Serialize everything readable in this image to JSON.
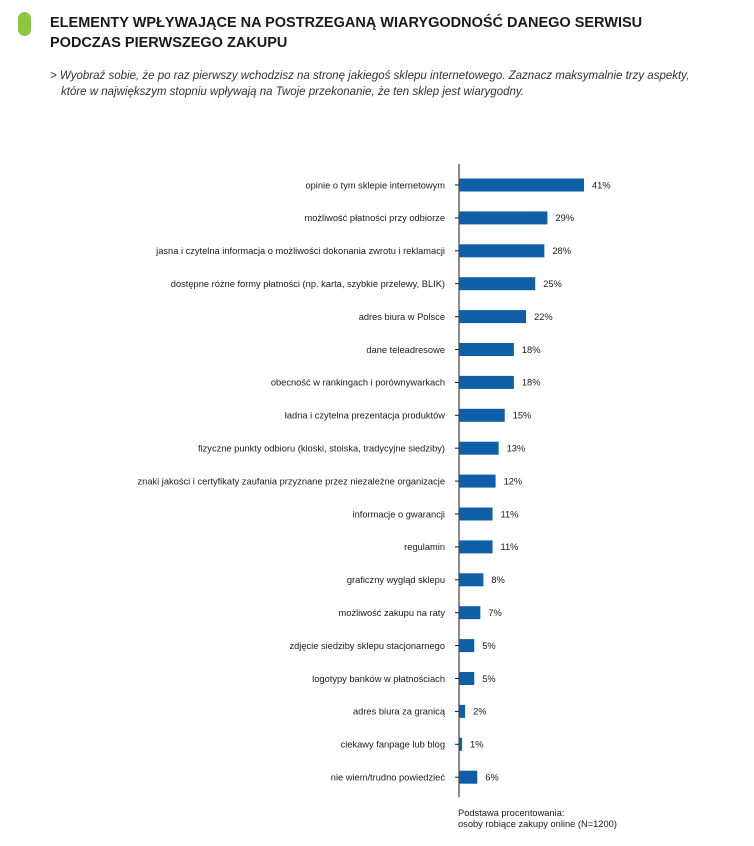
{
  "header": {
    "title_line1": "ELEMENTY WPŁYWAJĄCE NA POSTRZEGANĄ WIARYGODNOŚĆ DANEGO SERWISU",
    "title_line2": "PODCZAS PIERWSZEGO ZAKUPU",
    "question_line1": "> Wyobraź sobie, że po raz pierwszy wchodzisz na stronę jakiegoś sklepu internetowego. Zaznacz maksymalnie trzy aspekty,",
    "question_line2": "które w największym stopniu wpływają na Twoje przekonanie, że ten sklep jest wiarygodny."
  },
  "colors": {
    "accent": "#8dc63f",
    "bar": "#0f5fa8",
    "axis": "#1a1a1a"
  },
  "chart_data": {
    "type": "bar",
    "orientation": "horizontal",
    "value_suffix": "%",
    "xlim": [
      0,
      41
    ],
    "grid": false,
    "legend": "none",
    "categories": [
      "opinie o tym sklepie internetowym",
      "możliwość płatności przy odbiorze",
      "jasna i czytelna informacja o możliwości dokonania zwrotu i reklamacji",
      "dostępne różne formy płatności (np. karta, szybkie przelewy, BLIK)",
      "adres biura w Polsce",
      "dane teleadresowe",
      "obecność w rankingach i porównywarkach",
      "ładna i czytelna prezentacja produktów",
      "fizyczne punkty odbioru (kioski, stoiska, tradycyjne siedziby)",
      "znaki jakości i certyfikaty zaufania przyznane przez niezależne organizacje",
      "informacje o gwarancji",
      "regulamin",
      "graficzny wygląd sklepu",
      "możliwość zakupu na raty",
      "zdjęcie siedziby sklepu stacjonarnego",
      "logotypy banków w płatnościach",
      "adres biura za granicą",
      "ciekawy fanpage lub blog",
      "nie wiem/trudno powiedzieć"
    ],
    "values": [
      41,
      29,
      28,
      25,
      22,
      18,
      18,
      15,
      13,
      12,
      11,
      11,
      8,
      7,
      5,
      5,
      2,
      1,
      6
    ]
  },
  "footnote": {
    "line1": "Podstawa procentowania:",
    "line2": "osoby robiące zakupy online (N=1200)"
  }
}
